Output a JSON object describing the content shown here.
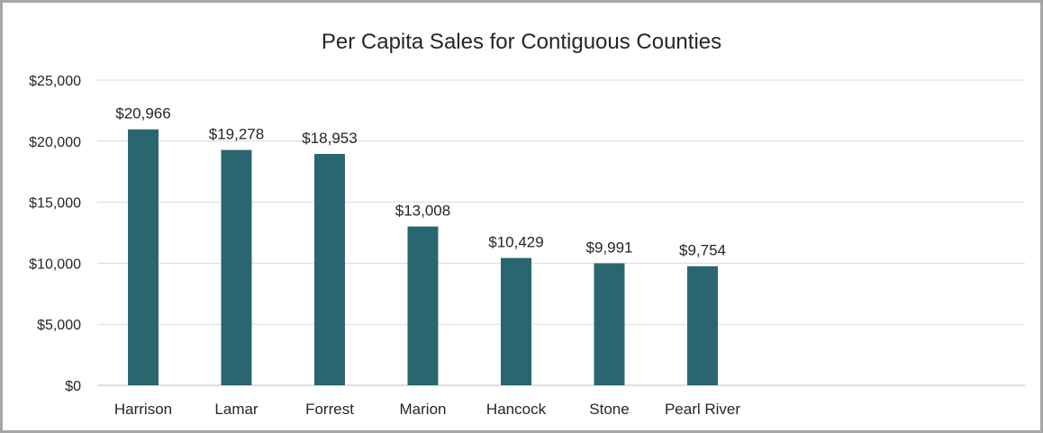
{
  "chart_data": {
    "type": "bar",
    "title": "Per Capita Sales for Contiguous Counties",
    "categories": [
      "Harrison",
      "Lamar",
      "Forrest",
      "Marion",
      "Hancock",
      "Stone",
      "Pearl River"
    ],
    "values": [
      20966,
      19278,
      18953,
      13008,
      10429,
      9991,
      9754
    ],
    "data_labels": [
      "$20,966",
      "$19,278",
      "$18,953",
      "$13,008",
      "$10,429",
      "$9,991",
      "$9,754"
    ],
    "yticks": [
      0,
      5000,
      10000,
      15000,
      20000,
      25000
    ],
    "ytick_labels": [
      "$0",
      "$5,000",
      "$10,000",
      "$15,000",
      "$20,000",
      "$25,000"
    ],
    "ylim": [
      0,
      25000
    ],
    "grid": true,
    "legend": "none",
    "bar_color": "#2a6670",
    "grid_color": "#d9d9d9"
  }
}
